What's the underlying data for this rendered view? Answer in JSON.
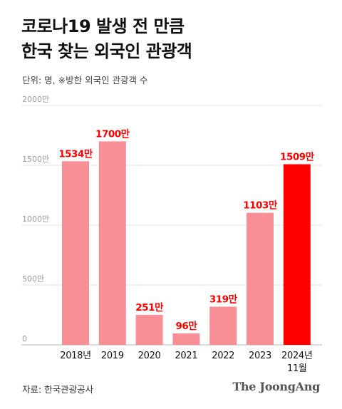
{
  "title_lines": [
    "코로나19 발생 전 만큼",
    "한국 찾는 외국인 관광객"
  ],
  "unit_note": "단위: 명, ※방한 외국인 관광객 수",
  "source": "자료: 한국관광공사",
  "brand": "The JoongAng",
  "chart_data": {
    "type": "bar",
    "categories": [
      "2018년",
      "2019",
      "2020",
      "2021",
      "2022",
      "2023",
      "2024년\n11월"
    ],
    "values": [
      1534,
      1700,
      251,
      96,
      319,
      1103,
      1509
    ],
    "data_labels": [
      "1534만",
      "1700만",
      "251만",
      "96만",
      "319만",
      "1103만",
      "1509만"
    ],
    "ylim": [
      0,
      2000
    ],
    "yticks": [
      0,
      500,
      1000,
      1500,
      2000
    ],
    "ytick_labels": [
      "0",
      "500만",
      "1000만",
      "1500만",
      "2000만"
    ],
    "colors": {
      "bar": "#f98f96",
      "highlight_bar": "#ff0000",
      "data_label": "#ff0000",
      "grid": "#e3e3e3"
    },
    "grid": true
  }
}
